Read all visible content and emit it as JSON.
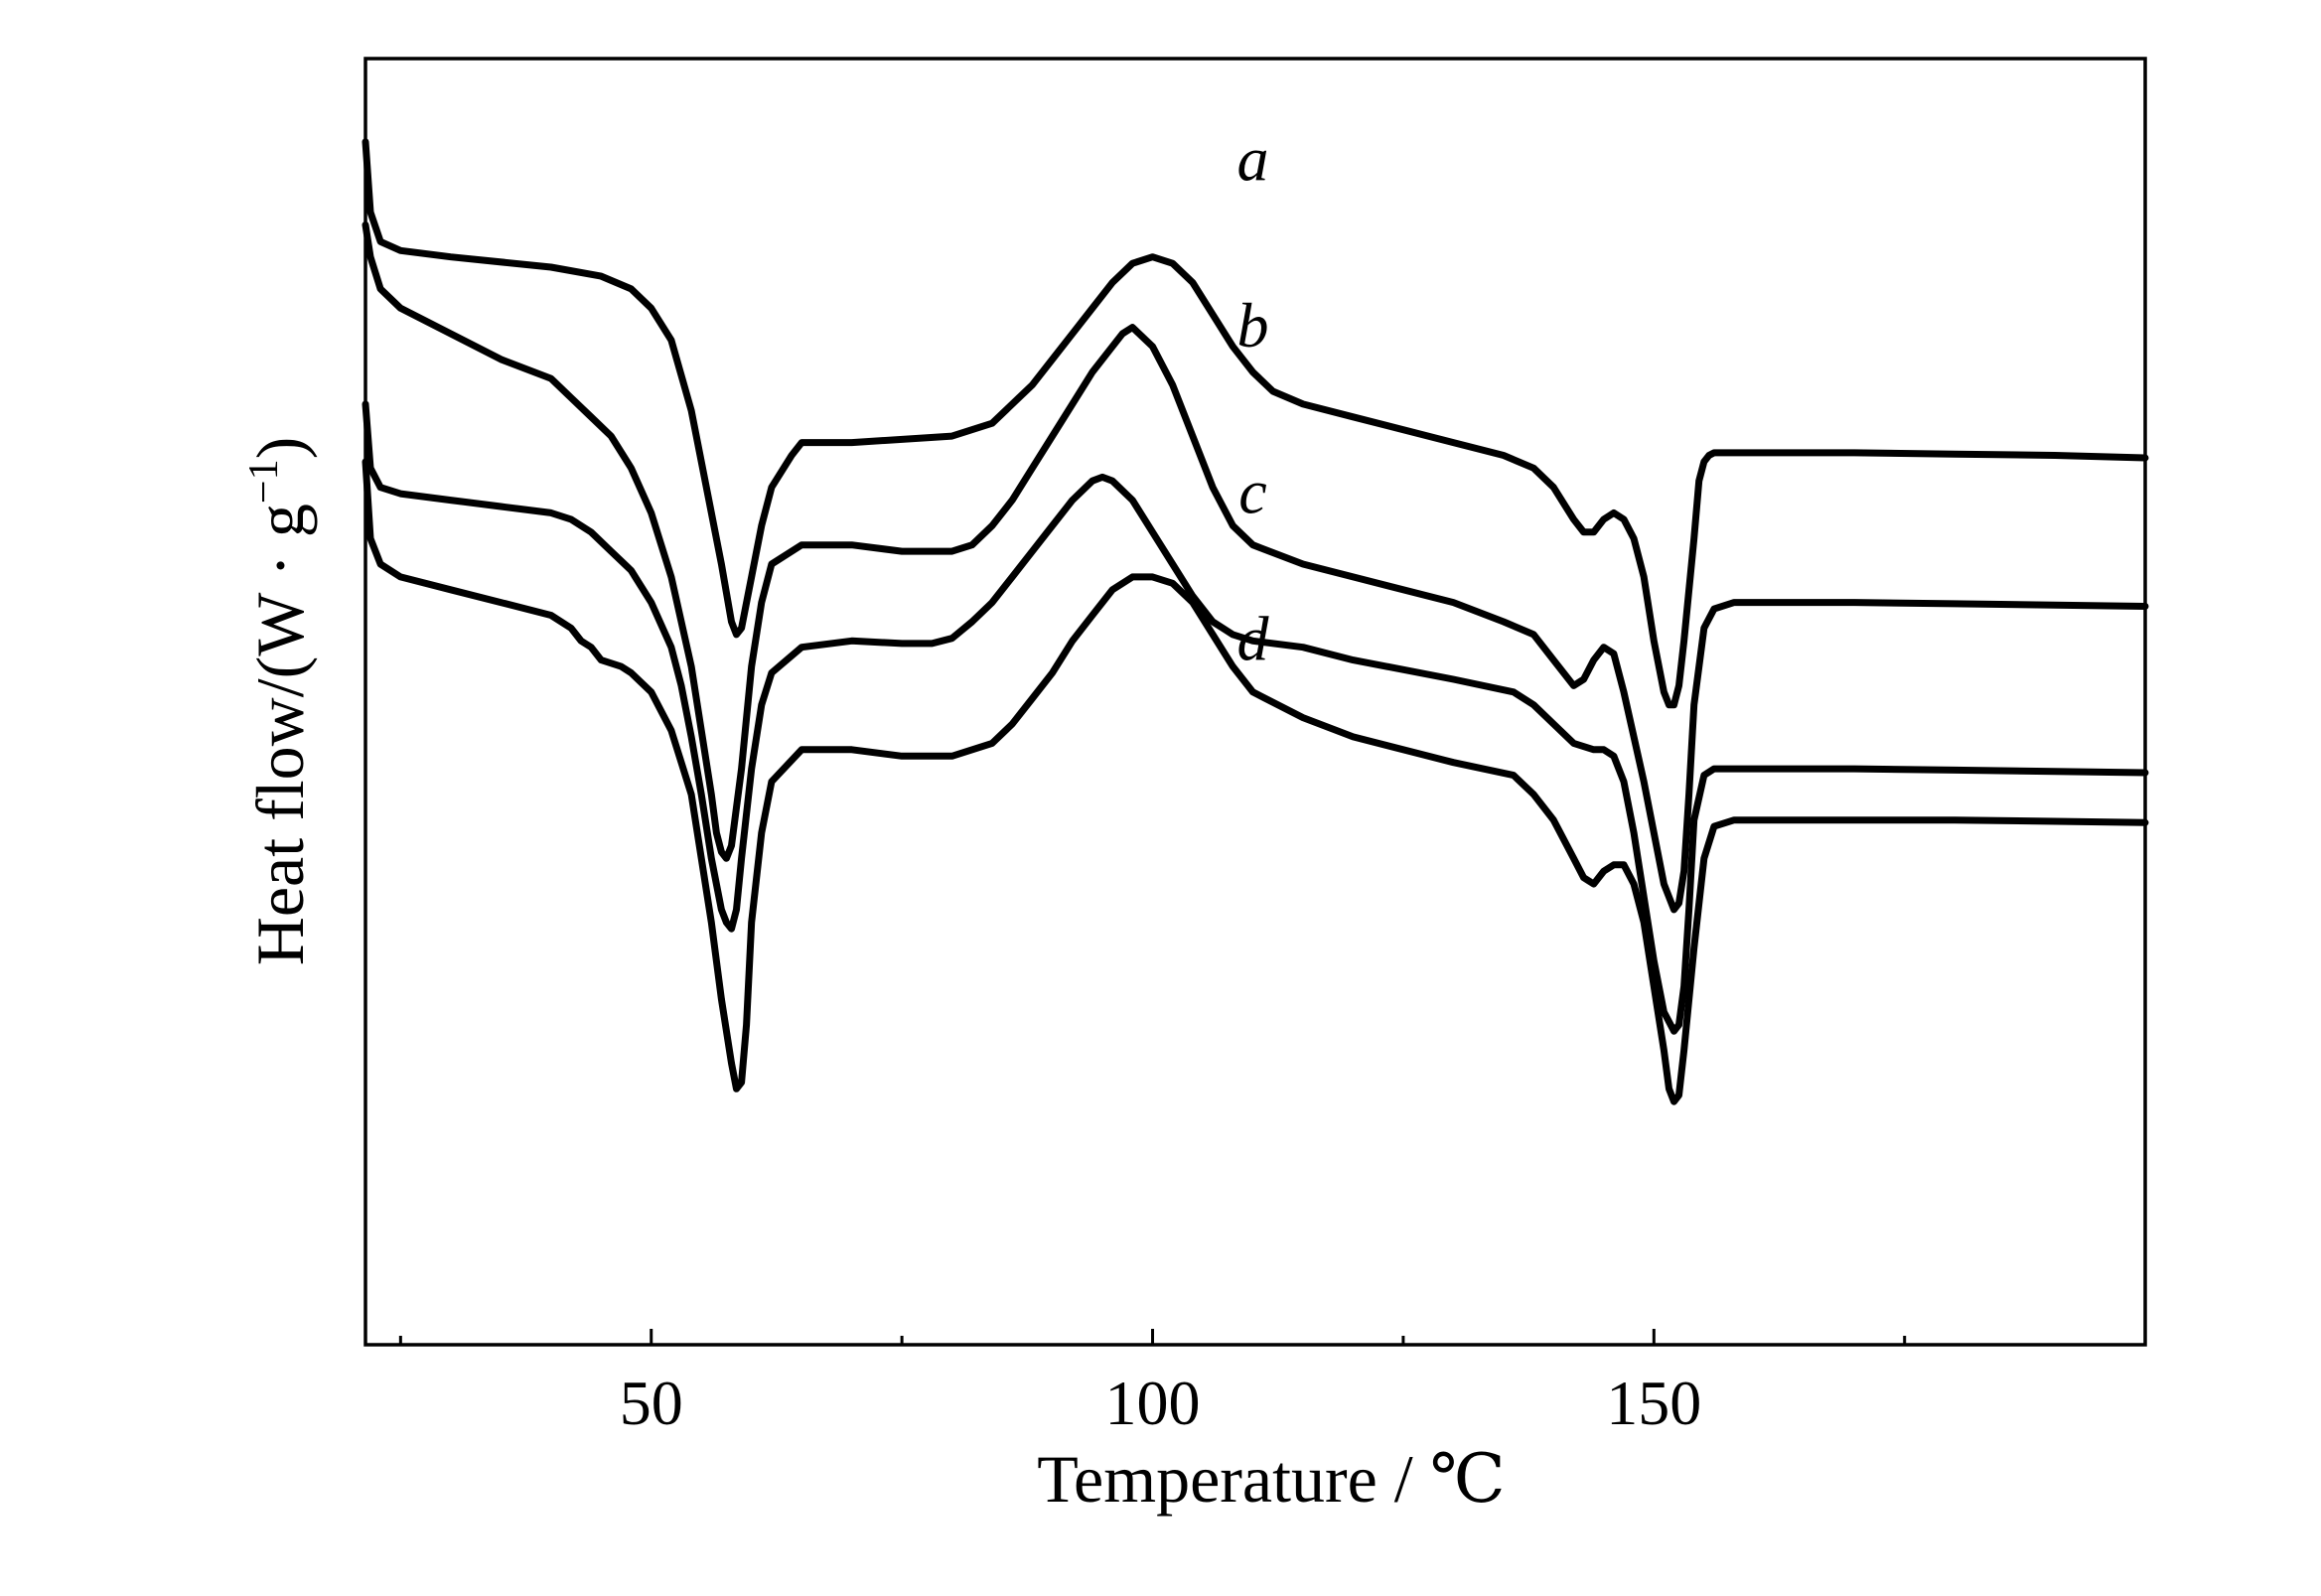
{
  "chart_data": {
    "type": "line",
    "title": "",
    "xlabel": "Temperature / ℃",
    "ylabel_main": "Heat flow/(W · g",
    "ylabel_sup": "−1",
    "ylabel_close": ")",
    "xlim": [
      21.5,
      199
    ],
    "ylim": [
      -9.3,
      0.75
    ],
    "x_ticks_major": [
      50,
      100,
      150
    ],
    "x_ticks_minor": [
      25,
      75,
      125,
      175
    ],
    "x_tick_labels": [
      "50",
      "100",
      "150"
    ],
    "y_ticks": [],
    "grid": false,
    "legend": "none",
    "series": [
      {
        "label": "a",
        "label_x": 110,
        "label_y": -0.2,
        "x": [
          21.5,
          22,
          23,
          25,
          30,
          40,
          45,
          48,
          50,
          52,
          54,
          56,
          57,
          58,
          58.5,
          59,
          60,
          61,
          62,
          64,
          65,
          70,
          80,
          84,
          86,
          88,
          90,
          92,
          94,
          96,
          98,
          100,
          102,
          104,
          106,
          108,
          110,
          112,
          115,
          120,
          130,
          135,
          138,
          140,
          142,
          143,
          144,
          145,
          146,
          147,
          148,
          149,
          150,
          151,
          151.5,
          152,
          152.5,
          153,
          154,
          154.5,
          155,
          155.5,
          156,
          158,
          160,
          170,
          180,
          190,
          199
        ],
        "y": [
          0.1,
          -0.45,
          -0.68,
          -0.75,
          -0.8,
          -0.88,
          -0.95,
          -1.05,
          -1.2,
          -1.45,
          -2.0,
          -2.8,
          -3.2,
          -3.65,
          -3.75,
          -3.7,
          -3.3,
          -2.9,
          -2.6,
          -2.35,
          -2.25,
          -2.25,
          -2.2,
          -2.1,
          -1.95,
          -1.8,
          -1.6,
          -1.4,
          -1.2,
          -1.0,
          -0.85,
          -0.8,
          -0.85,
          -1.0,
          -1.25,
          -1.5,
          -1.7,
          -1.85,
          -1.95,
          -2.05,
          -2.25,
          -2.35,
          -2.45,
          -2.6,
          -2.85,
          -2.95,
          -2.95,
          -2.85,
          -2.8,
          -2.85,
          -3.0,
          -3.3,
          -3.8,
          -4.2,
          -4.3,
          -4.3,
          -4.15,
          -3.8,
          -3.0,
          -2.55,
          -2.4,
          -2.35,
          -2.33,
          -2.33,
          -2.33,
          -2.33,
          -2.34,
          -2.35,
          -2.37
        ]
      },
      {
        "label": "b",
        "label_x": 110,
        "label_y": -1.5,
        "x": [
          21.5,
          22,
          23,
          25,
          30,
          35,
          40,
          42,
          44,
          46,
          48,
          50,
          52,
          54,
          55,
          56,
          56.5,
          57,
          57.5,
          58,
          59,
          60,
          61,
          62,
          65,
          70,
          75,
          80,
          82,
          84,
          86,
          88,
          90,
          92,
          94,
          96,
          97,
          98,
          100,
          102,
          104,
          106,
          108,
          110,
          115,
          120,
          130,
          135,
          138,
          140,
          141,
          142,
          143,
          144,
          145,
          146,
          147,
          148,
          149,
          150,
          151,
          152,
          152.5,
          153,
          153.5,
          154,
          155,
          156,
          158,
          160,
          170,
          180,
          190,
          199
        ],
        "y": [
          -0.55,
          -0.8,
          -1.05,
          -1.2,
          -1.4,
          -1.6,
          -1.75,
          -1.9,
          -2.05,
          -2.2,
          -2.45,
          -2.8,
          -3.3,
          -4.0,
          -4.5,
          -5.0,
          -5.3,
          -5.45,
          -5.5,
          -5.4,
          -4.8,
          -4.0,
          -3.5,
          -3.2,
          -3.05,
          -3.05,
          -3.1,
          -3.1,
          -3.05,
          -2.9,
          -2.7,
          -2.45,
          -2.2,
          -1.95,
          -1.7,
          -1.5,
          -1.4,
          -1.35,
          -1.5,
          -1.8,
          -2.2,
          -2.6,
          -2.9,
          -3.05,
          -3.2,
          -3.3,
          -3.5,
          -3.65,
          -3.75,
          -3.95,
          -4.05,
          -4.15,
          -4.1,
          -3.95,
          -3.85,
          -3.9,
          -4.2,
          -4.55,
          -4.9,
          -5.3,
          -5.7,
          -5.9,
          -5.85,
          -5.6,
          -5.0,
          -4.3,
          -3.7,
          -3.55,
          -3.5,
          -3.5,
          -3.5,
          -3.51,
          -3.52,
          -3.53
        ]
      },
      {
        "label": "c",
        "label_x": 110,
        "label_y": -2.8,
        "x": [
          21.5,
          22,
          23,
          25,
          30,
          35,
          40,
          42,
          44,
          46,
          48,
          50,
          52,
          53,
          54,
          55,
          56,
          57,
          57.5,
          58,
          58.5,
          59,
          60,
          61,
          62,
          65,
          70,
          75,
          78,
          80,
          82,
          84,
          86,
          88,
          90,
          92,
          94,
          95,
          96,
          98,
          100,
          102,
          104,
          106,
          108,
          110,
          115,
          120,
          130,
          136,
          138,
          140,
          142,
          144,
          145,
          146,
          147,
          148,
          149,
          150,
          151,
          152,
          152.5,
          153,
          153.5,
          154,
          155,
          156,
          158,
          160,
          170,
          180,
          190,
          199
        ],
        "y": [
          -1.95,
          -2.45,
          -2.6,
          -2.65,
          -2.7,
          -2.75,
          -2.8,
          -2.85,
          -2.95,
          -3.1,
          -3.25,
          -3.5,
          -3.85,
          -4.15,
          -4.55,
          -5.0,
          -5.5,
          -5.9,
          -6.0,
          -6.05,
          -5.9,
          -5.5,
          -4.8,
          -4.3,
          -4.05,
          -3.85,
          -3.8,
          -3.82,
          -3.82,
          -3.78,
          -3.65,
          -3.5,
          -3.3,
          -3.1,
          -2.9,
          -2.7,
          -2.55,
          -2.52,
          -2.55,
          -2.7,
          -2.95,
          -3.2,
          -3.45,
          -3.65,
          -3.75,
          -3.8,
          -3.85,
          -3.95,
          -4.1,
          -4.2,
          -4.3,
          -4.45,
          -4.6,
          -4.65,
          -4.65,
          -4.7,
          -4.9,
          -5.3,
          -5.8,
          -6.3,
          -6.7,
          -6.85,
          -6.8,
          -6.5,
          -5.9,
          -5.2,
          -4.85,
          -4.8,
          -4.8,
          -4.8,
          -4.8,
          -4.81,
          -4.82,
          -4.83
        ]
      },
      {
        "label": "d",
        "label_x": 110,
        "label_y": -3.95,
        "x": [
          21.5,
          22,
          23,
          25,
          30,
          35,
          40,
          42,
          43,
          44,
          45,
          47,
          48,
          50,
          52,
          54,
          55,
          56,
          57,
          58,
          58.5,
          59,
          59.5,
          60,
          61,
          62,
          65,
          70,
          75,
          80,
          84,
          86,
          88,
          90,
          92,
          94,
          96,
          98,
          100,
          102,
          104,
          106,
          108,
          110,
          115,
          120,
          130,
          136,
          138,
          140,
          142,
          143,
          144,
          145,
          146,
          147,
          148,
          149,
          150,
          151,
          151.5,
          152,
          152.5,
          153,
          154,
          155,
          156,
          158,
          160,
          170,
          180,
          190,
          199
        ],
        "y": [
          -2.4,
          -3.0,
          -3.2,
          -3.3,
          -3.4,
          -3.5,
          -3.6,
          -3.7,
          -3.8,
          -3.85,
          -3.95,
          -4.0,
          -4.05,
          -4.2,
          -4.5,
          -5.0,
          -5.5,
          -6.0,
          -6.6,
          -7.1,
          -7.3,
          -7.25,
          -6.8,
          -6.0,
          -5.3,
          -4.9,
          -4.65,
          -4.65,
          -4.7,
          -4.7,
          -4.6,
          -4.45,
          -4.25,
          -4.05,
          -3.8,
          -3.6,
          -3.4,
          -3.3,
          -3.3,
          -3.35,
          -3.5,
          -3.75,
          -4.0,
          -4.2,
          -4.4,
          -4.55,
          -4.75,
          -4.85,
          -5.0,
          -5.2,
          -5.5,
          -5.65,
          -5.7,
          -5.6,
          -5.55,
          -5.55,
          -5.7,
          -6.0,
          -6.5,
          -7.0,
          -7.3,
          -7.4,
          -7.35,
          -7.0,
          -6.2,
          -5.5,
          -5.25,
          -5.2,
          -5.2,
          -5.2,
          -5.2,
          -5.21,
          -5.22
        ]
      }
    ]
  }
}
